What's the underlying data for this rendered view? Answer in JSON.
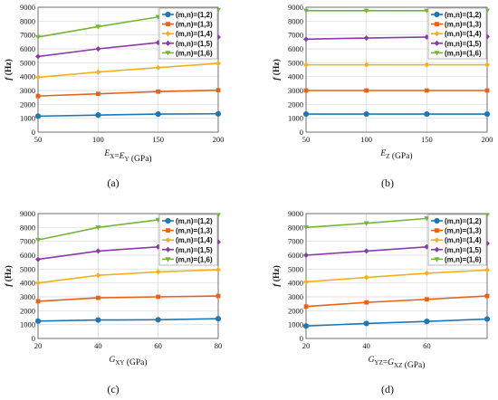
{
  "colors": [
    "#1f77b4",
    "#e8611a",
    "#f2b01e",
    "#8b3aa6",
    "#74b43a"
  ],
  "markers": [
    "circle",
    "square",
    "diamond",
    "diamond",
    "triangle-down"
  ],
  "chart_data": [
    {
      "type": "line",
      "panel_label": "(a)",
      "xlabel_parts": [
        [
          "E",
          "X"
        ],
        [
          "=",
          ""
        ],
        [
          "E",
          "Y"
        ],
        [
          " (GPa)",
          ""
        ]
      ],
      "ylabel": "f (Hz)",
      "x": [
        50,
        100,
        150,
        200
      ],
      "xlim": [
        50,
        200
      ],
      "xticks": [
        "50",
        "100",
        "150",
        "200"
      ],
      "ylim": [
        0,
        9000
      ],
      "yticks": [
        "0",
        "1000",
        "2000",
        "3000",
        "4000",
        "5000",
        "6000",
        "7000",
        "8000",
        "9000"
      ],
      "grid": true,
      "legend_position": "top-right",
      "series": [
        {
          "name": "(m,n)=(1,2)",
          "values": [
            1150,
            1230,
            1300,
            1320
          ]
        },
        {
          "name": "(m,n)=(1,3)",
          "values": [
            2600,
            2760,
            2920,
            3020
          ]
        },
        {
          "name": "(m,n)=(1,4)",
          "values": [
            3950,
            4330,
            4650,
            4950
          ]
        },
        {
          "name": "(m,n)=(1,5)",
          "values": [
            5450,
            6000,
            6450,
            6850
          ]
        },
        {
          "name": "(m,n)=(1,6)",
          "values": [
            6850,
            7600,
            8300,
            8800
          ]
        }
      ]
    },
    {
      "type": "line",
      "panel_label": "(b)",
      "xlabel_parts": [
        [
          "E",
          "Z"
        ],
        [
          " (GPa)",
          ""
        ]
      ],
      "ylabel": "f (Hz)",
      "x": [
        50,
        100,
        150,
        200
      ],
      "xlim": [
        50,
        200
      ],
      "xticks": [
        "50",
        "100",
        "150",
        "200"
      ],
      "ylim": [
        0,
        9000
      ],
      "yticks": [
        "0",
        "1000",
        "2000",
        "3000",
        "4000",
        "5000",
        "6000",
        "7000",
        "8000",
        "9000"
      ],
      "grid": true,
      "legend_position": "top-right",
      "series": [
        {
          "name": "(m,n)=(1,2)",
          "values": [
            1300,
            1300,
            1300,
            1300
          ]
        },
        {
          "name": "(m,n)=(1,3)",
          "values": [
            3000,
            3000,
            3000,
            3000
          ]
        },
        {
          "name": "(m,n)=(1,4)",
          "values": [
            4850,
            4850,
            4850,
            4850
          ]
        },
        {
          "name": "(m,n)=(1,5)",
          "values": [
            6700,
            6780,
            6850,
            6880
          ]
        },
        {
          "name": "(m,n)=(1,6)",
          "values": [
            8750,
            8750,
            8750,
            8750
          ]
        }
      ]
    },
    {
      "type": "line",
      "panel_label": "(c)",
      "xlabel_parts": [
        [
          "G",
          "XY"
        ],
        [
          " (GPa)",
          ""
        ]
      ],
      "ylabel": "f (Hz)",
      "x": [
        20,
        40,
        60,
        80
      ],
      "xlim": [
        20,
        80
      ],
      "xticks": [
        "20",
        "40",
        "60",
        "80"
      ],
      "ylim": [
        0,
        9000
      ],
      "yticks": [
        "0",
        "1000",
        "2000",
        "3000",
        "4000",
        "5000",
        "6000",
        "7000",
        "8000",
        "9000"
      ],
      "grid": true,
      "legend_position": "top-right",
      "series": [
        {
          "name": "(m,n)=(1,2)",
          "values": [
            1250,
            1330,
            1350,
            1420
          ]
        },
        {
          "name": "(m,n)=(1,3)",
          "values": [
            2680,
            2930,
            3000,
            3060
          ]
        },
        {
          "name": "(m,n)=(1,4)",
          "values": [
            4000,
            4550,
            4800,
            4950
          ]
        },
        {
          "name": "(m,n)=(1,5)",
          "values": [
            5700,
            6300,
            6600,
            6950
          ]
        },
        {
          "name": "(m,n)=(1,6)",
          "values": [
            7100,
            8000,
            8550,
            8900
          ]
        }
      ]
    },
    {
      "type": "line",
      "panel_label": "(d)",
      "xlabel_parts": [
        [
          "G",
          "YZ"
        ],
        [
          "=",
          ""
        ],
        [
          "G",
          "XZ"
        ],
        [
          " (GPa)",
          ""
        ]
      ],
      "ylabel": "f (Hz)",
      "x": [
        20,
        40,
        60,
        80
      ],
      "xlim": [
        20,
        80
      ],
      "xticks": [
        "20",
        "40",
        "60"
      ],
      "ylim": [
        0,
        9000
      ],
      "yticks": [
        "0",
        "1000",
        "2000",
        "3000",
        "4000",
        "5000",
        "6000",
        "7000",
        "8000",
        "9000"
      ],
      "grid": true,
      "legend_position": "top-right",
      "series": [
        {
          "name": "(m,n)=(1,2)",
          "values": [
            900,
            1080,
            1230,
            1400
          ]
        },
        {
          "name": "(m,n)=(1,3)",
          "values": [
            2300,
            2600,
            2820,
            3060
          ]
        },
        {
          "name": "(m,n)=(1,4)",
          "values": [
            4080,
            4400,
            4700,
            4930
          ]
        },
        {
          "name": "(m,n)=(1,5)",
          "values": [
            6000,
            6300,
            6600,
            6850
          ]
        },
        {
          "name": "(m,n)=(1,6)",
          "values": [
            8000,
            8300,
            8650,
            8900
          ]
        }
      ]
    }
  ]
}
